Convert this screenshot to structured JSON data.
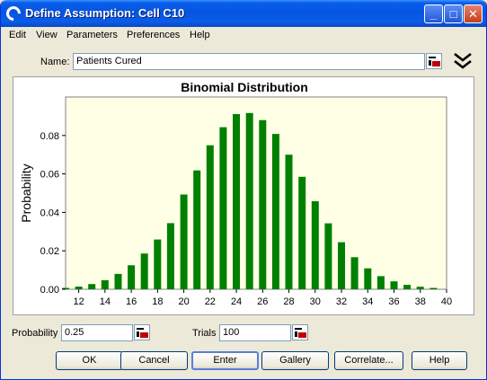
{
  "window": {
    "title": "Define Assumption: Cell C10"
  },
  "menu": [
    "Edit",
    "View",
    "Parameters",
    "Preferences",
    "Help"
  ],
  "name_field": {
    "label": "Name:",
    "value": "Patients Cured"
  },
  "params": {
    "probability_label": "Probability",
    "probability_value": "0.25",
    "trials_label": "Trials",
    "trials_value": "100"
  },
  "buttons": {
    "ok": "OK",
    "cancel": "Cancel",
    "enter": "Enter",
    "gallery": "Gallery",
    "correlate": "Correlate...",
    "help": "Help"
  },
  "colors": {
    "bar": "#008000",
    "plot_bg": "#ffffe6",
    "title_bar": "#0554e3"
  },
  "chart_data": {
    "type": "bar",
    "title": "Binomial Distribution",
    "xlabel": "",
    "ylabel": "Probability",
    "categories": [
      11,
      12,
      13,
      14,
      15,
      16,
      17,
      18,
      19,
      20,
      21,
      22,
      23,
      24,
      25,
      26,
      27,
      28,
      29,
      30,
      31,
      32,
      33,
      34,
      35,
      36,
      37,
      38,
      39
    ],
    "values": [
      0.0007,
      0.0014,
      0.0027,
      0.0047,
      0.008,
      0.0125,
      0.0186,
      0.0259,
      0.0344,
      0.0493,
      0.0618,
      0.0749,
      0.0843,
      0.0911,
      0.0917,
      0.088,
      0.0808,
      0.07,
      0.0585,
      0.0458,
      0.0343,
      0.0245,
      0.0167,
      0.0109,
      0.0068,
      0.0041,
      0.0023,
      0.0013,
      0.0007
    ],
    "xticks": [
      12,
      14,
      16,
      18,
      20,
      22,
      24,
      26,
      28,
      30,
      32,
      34,
      36,
      38,
      40
    ],
    "yticks": [
      "0.00",
      "0.02",
      "0.04",
      "0.06",
      "0.08"
    ],
    "xlim": [
      11,
      40
    ],
    "ylim": [
      0,
      0.1
    ],
    "grid": false
  }
}
